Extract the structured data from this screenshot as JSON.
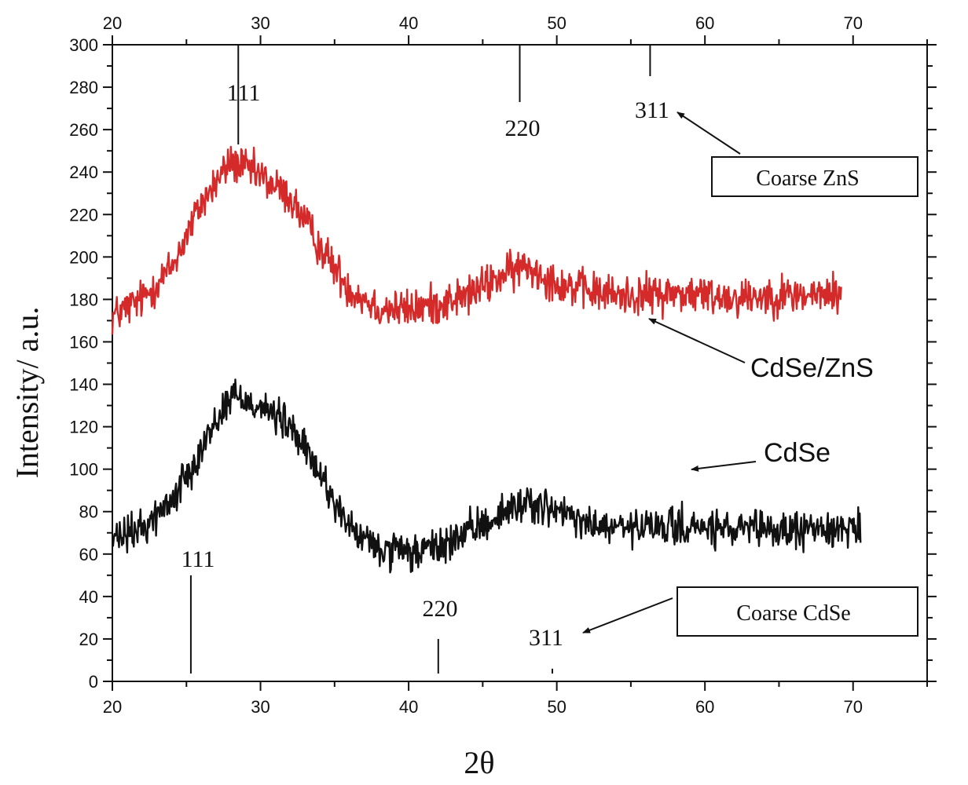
{
  "chart_data": {
    "type": "line",
    "xlabel": "2θ",
    "ylabel": "Intensity/ a.u.",
    "xlim": [
      20,
      75
    ],
    "ylim": [
      0,
      300
    ],
    "x_ticks": [
      20,
      30,
      40,
      50,
      60,
      70
    ],
    "y_ticks": [
      0,
      20,
      40,
      60,
      80,
      100,
      120,
      140,
      160,
      180,
      200,
      220,
      240,
      260,
      280,
      300
    ],
    "top_axis_ticks": [
      20,
      30,
      40,
      50,
      60,
      70
    ],
    "grid": false,
    "series": [
      {
        "name": "CdSe/ZnS",
        "color": "#d42a2a",
        "x_range": [
          20,
          69.2
        ],
        "noise_amplitude": 14,
        "profile": [
          [
            20,
            172
          ],
          [
            22,
            180
          ],
          [
            24,
            195
          ],
          [
            26,
            225
          ],
          [
            28,
            245
          ],
          [
            30,
            238
          ],
          [
            32,
            228
          ],
          [
            34,
            205
          ],
          [
            36,
            185
          ],
          [
            38,
            176
          ],
          [
            40,
            175
          ],
          [
            42,
            178
          ],
          [
            44,
            182
          ],
          [
            46,
            190
          ],
          [
            48,
            196
          ],
          [
            50,
            188
          ],
          [
            52,
            184
          ],
          [
            54,
            182
          ],
          [
            56,
            182
          ],
          [
            58,
            183
          ],
          [
            60,
            182
          ],
          [
            62,
            181
          ],
          [
            64,
            182
          ],
          [
            66,
            182
          ],
          [
            68,
            182
          ],
          [
            69.2,
            183
          ]
        ]
      },
      {
        "name": "CdSe",
        "color": "#111111",
        "x_range": [
          20,
          70.5
        ],
        "noise_amplitude": 13,
        "profile": [
          [
            20,
            66
          ],
          [
            22,
            72
          ],
          [
            24,
            85
          ],
          [
            26,
            110
          ],
          [
            28,
            135
          ],
          [
            30,
            130
          ],
          [
            32,
            120
          ],
          [
            34,
            98
          ],
          [
            36,
            72
          ],
          [
            38,
            62
          ],
          [
            40,
            60
          ],
          [
            42,
            63
          ],
          [
            44,
            70
          ],
          [
            46,
            78
          ],
          [
            48,
            85
          ],
          [
            50,
            80
          ],
          [
            52,
            74
          ],
          [
            54,
            72
          ],
          [
            56,
            72
          ],
          [
            58,
            73
          ],
          [
            60,
            72
          ],
          [
            62,
            71
          ],
          [
            64,
            71
          ],
          [
            66,
            71
          ],
          [
            68,
            72
          ],
          [
            70.5,
            73
          ]
        ]
      }
    ],
    "reference_lines": {
      "zns": [
        {
          "label": "111",
          "x": 28.5
        },
        {
          "label": "220",
          "x": 47.5
        },
        {
          "label": "311",
          "x": 56.3
        }
      ],
      "cdse": [
        {
          "label": "111",
          "x": 25.3,
          "top": 50
        },
        {
          "label": "220",
          "x": 42.0,
          "top": 20
        },
        {
          "label": "311",
          "x": 49.7,
          "top": 6
        }
      ]
    },
    "annotations": {
      "coarse_zns": "Coarse ZnS",
      "coarse_cdse": "Coarse CdSe",
      "cdse_zns": "CdSe/ZnS",
      "cdse": "CdSe"
    }
  }
}
